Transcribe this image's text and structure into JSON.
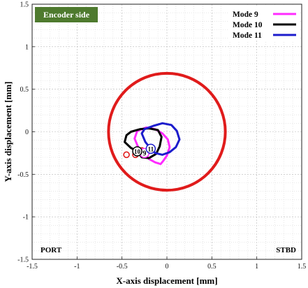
{
  "chart_data": {
    "type": "line",
    "title": "",
    "xlabel": "X-axis displacement [mm]",
    "ylabel": "Y-axis displacement [mm]",
    "xlim": [
      -1.5,
      1.5
    ],
    "ylim": [
      -1.5,
      1.5
    ],
    "xticks": [
      -1.5,
      -1,
      -0.5,
      0,
      0.5,
      1,
      1.5
    ],
    "yticks": [
      -1.5,
      -1,
      -0.5,
      0,
      0.5,
      1,
      1.5
    ],
    "xtick_labels": [
      "-1.5",
      "-1",
      "-0.5",
      "0",
      "0.5",
      "1",
      "1.5"
    ],
    "ytick_labels": [
      "-1.5",
      "-1",
      "-0.5",
      "0",
      "0.5",
      "1",
      "1.5"
    ],
    "grid": true,
    "legend_position": "top-right",
    "side_label": "Encoder side",
    "side_label_color": "#4e7a2e",
    "corner_labels": {
      "left": "PORT",
      "right": "STBD"
    },
    "clearance_circle": {
      "center": [
        0,
        0
      ],
      "radius": 0.65,
      "color": "#e01b1b"
    },
    "series": [
      {
        "name": "Mode 9",
        "color": "#ff2bff",
        "marker_label": "9",
        "start": [
          -0.35,
          -0.27
        ],
        "end": [
          -0.25,
          -0.25
        ],
        "x": [
          -0.25,
          -0.32,
          -0.36,
          -0.33,
          -0.23,
          -0.13,
          -0.05,
          0.01,
          0.03,
          0.0,
          -0.04,
          -0.07,
          -0.13,
          -0.2,
          -0.25
        ],
        "y": [
          -0.25,
          -0.18,
          -0.08,
          0.01,
          0.05,
          0.03,
          -0.02,
          -0.09,
          -0.18,
          -0.28,
          -0.34,
          -0.38,
          -0.36,
          -0.32,
          -0.25
        ]
      },
      {
        "name": "Mode 10",
        "color": "#000000",
        "marker_label": "10",
        "start": [
          -0.45,
          -0.27
        ],
        "end": [
          -0.33,
          -0.23
        ],
        "x": [
          -0.33,
          -0.4,
          -0.47,
          -0.45,
          -0.4,
          -0.3,
          -0.2,
          -0.1,
          -0.06,
          -0.08,
          -0.12,
          -0.2,
          -0.28,
          -0.33
        ],
        "y": [
          -0.23,
          -0.19,
          -0.12,
          -0.04,
          0.0,
          0.03,
          0.04,
          0.02,
          -0.06,
          -0.17,
          -0.26,
          -0.31,
          -0.3,
          -0.23
        ]
      },
      {
        "name": "Mode 11",
        "color": "#1c1ccc",
        "marker_label": "11",
        "start": [
          -0.28,
          -0.22
        ],
        "end": [
          -0.18,
          -0.2
        ],
        "x": [
          -0.18,
          -0.24,
          -0.28,
          -0.25,
          -0.15,
          -0.05,
          0.05,
          0.11,
          0.14,
          0.1,
          0.03,
          -0.05,
          -0.13,
          -0.18
        ],
        "y": [
          -0.2,
          -0.12,
          -0.02,
          0.03,
          0.07,
          0.1,
          0.08,
          0.01,
          -0.09,
          -0.18,
          -0.24,
          -0.27,
          -0.25,
          -0.2
        ]
      }
    ]
  }
}
